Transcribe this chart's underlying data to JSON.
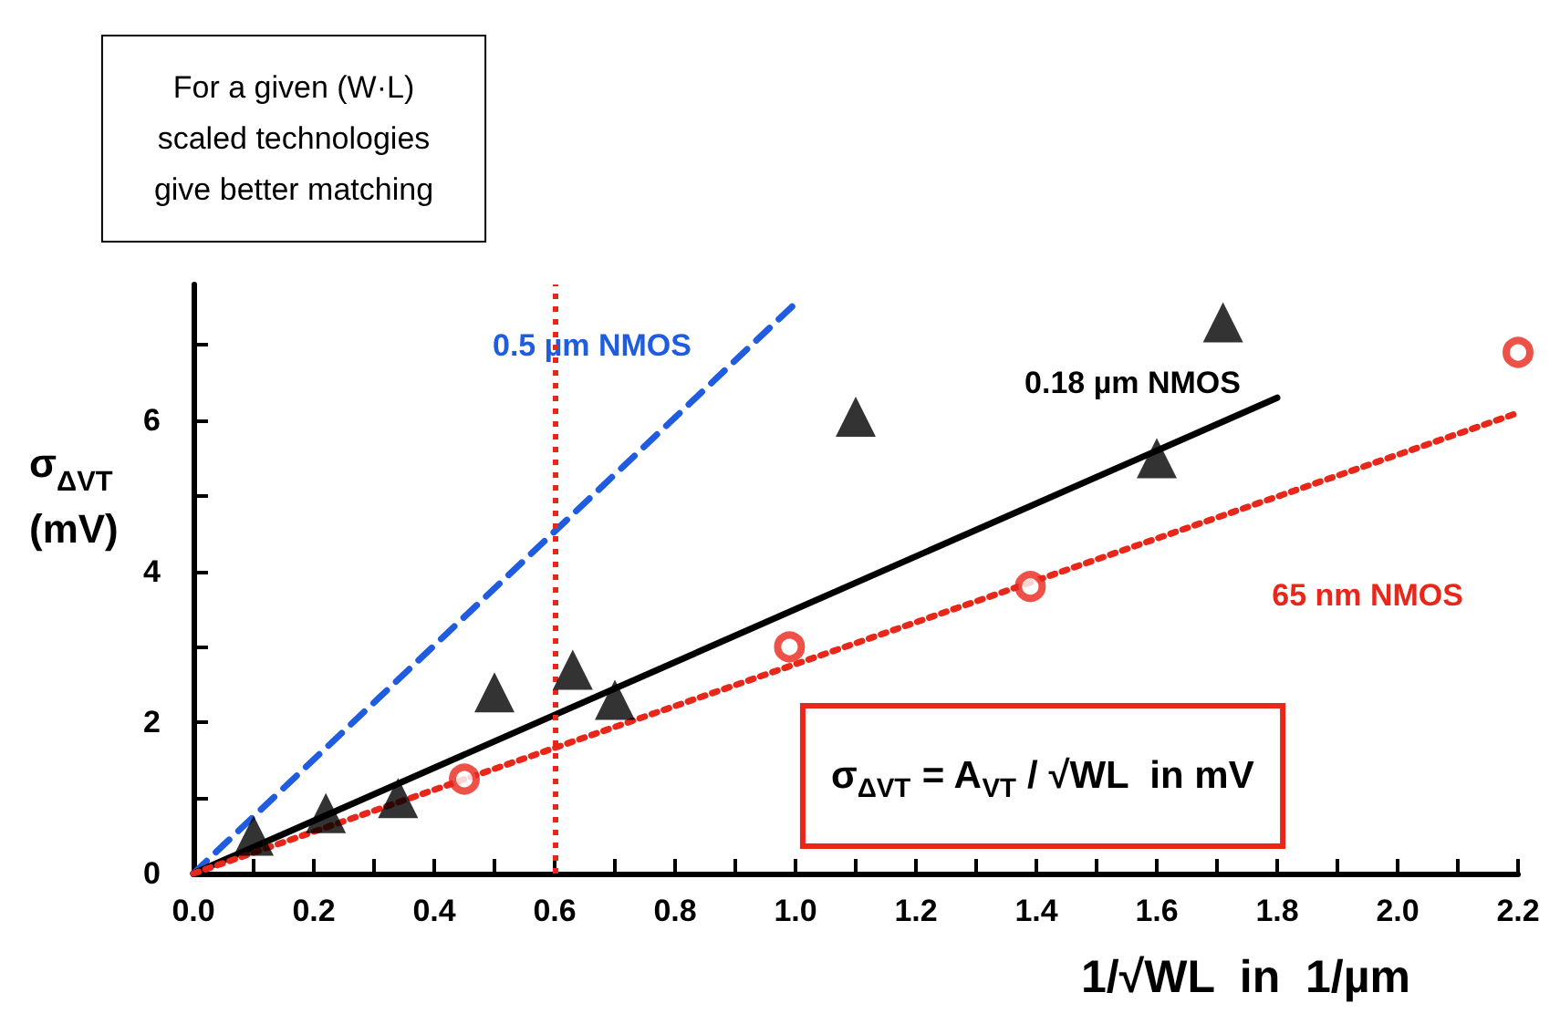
{
  "chart_data": {
    "type": "scatter",
    "ylabel": "σ$_{ΔVT}$ (mV)",
    "xlabel": "1/√WL  in  1/µm",
    "xlim": [
      0,
      2.2
    ],
    "xticks": [
      {
        "value": 0,
        "label": "0.0"
      },
      {
        "value": 0.1,
        "label": null
      },
      0.2,
      {
        "value": 0.3,
        "label": null
      },
      0.4,
      {
        "value": 0.5,
        "label": null
      },
      0.6,
      {
        "value": 0.7,
        "label": null
      },
      0.8,
      {
        "value": 0.9,
        "label": null
      },
      {
        "value": 1,
        "label": "1.0"
      },
      {
        "value": 1.1,
        "label": null
      },
      1.2,
      {
        "value": 1.3,
        "label": null
      },
      1.4,
      {
        "value": 1.5,
        "label": null
      },
      1.6,
      {
        "value": 1.7,
        "label": null
      },
      1.8,
      {
        "value": 1.9,
        "label": null
      },
      {
        "value": 2,
        "label": "2.0"
      },
      {
        "value": 2.1,
        "label": null
      },
      2.2
    ],
    "ylim": [
      0,
      7.8
    ],
    "yticks": [
      0,
      {
        "value": 1,
        "label": null
      },
      2,
      {
        "value": 3,
        "label": null
      },
      4,
      {
        "value": 5,
        "label": null
      },
      6,
      {
        "value": 7,
        "label": null
      }
    ],
    "grid": false,
    "legend": false,
    "series": [
      {
        "name": "0.5 µm NMOS",
        "type": "line",
        "color": "#1f5ce0",
        "line_style": "dashed",
        "marker": "none",
        "x": [
          0,
          1.0
        ],
        "values": [
          0,
          7.55
        ]
      },
      {
        "name": "0.18 µm NMOS",
        "type": "line",
        "color": "#000000",
        "line_style": "solid",
        "marker": "none",
        "x": [
          0,
          1.8
        ],
        "values": [
          0,
          6.3
        ]
      },
      {
        "name": "65 nm NMOS",
        "type": "line",
        "color": "#e8261a",
        "line_style": "dotted",
        "marker": "none",
        "x": [
          0,
          2.2
        ],
        "values": [
          0,
          6.1
        ]
      },
      {
        "color": "#000000",
        "marker": "triangle",
        "x": [
          0.1,
          0.22,
          0.34,
          0.5,
          0.63,
          0.7,
          1.1,
          1.6,
          1.71
        ],
        "values": [
          0.5,
          0.8,
          1.0,
          2.4,
          2.7,
          2.3,
          6.05,
          5.5,
          7.3
        ]
      },
      {
        "color": "#e8261a",
        "marker": "circle",
        "x": [
          0.45,
          0.99,
          1.39,
          2.2
        ],
        "values": [
          1.25,
          3.0,
          3.8,
          6.9
        ]
      }
    ],
    "ref_lines": [
      {
        "axis": "x",
        "value": 0.6,
        "color": "#e8261a",
        "line_style": "dotted"
      }
    ],
    "annotations": [
      "For a given (W·L)\nscaled technologies\ngive better matching",
      "σ$_{ΔVT}$ = A$_{VT}$ / √WL  in mV"
    ]
  }
}
